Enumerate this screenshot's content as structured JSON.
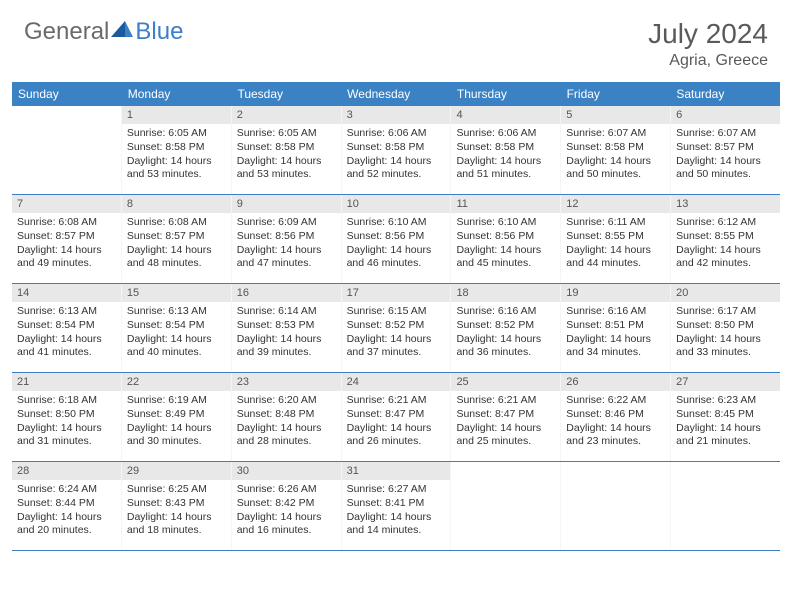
{
  "logo": {
    "general": "General",
    "blue": "Blue"
  },
  "title": "July 2024",
  "location": "Agria, Greece",
  "colors": {
    "header_bg": "#3b82c4",
    "header_text": "#ffffff",
    "daynum_bg": "#e8e8e8",
    "daynum_text": "#555555",
    "body_text": "#333333",
    "title_text": "#5a5a5a",
    "logo_gray": "#6a6a6a",
    "logo_blue": "#3b7fc4",
    "week_border": "#3b7fc4"
  },
  "day_names": [
    "Sunday",
    "Monday",
    "Tuesday",
    "Wednesday",
    "Thursday",
    "Friday",
    "Saturday"
  ],
  "weeks": [
    [
      null,
      {
        "n": "1",
        "sr": "Sunrise: 6:05 AM",
        "ss": "Sunset: 8:58 PM",
        "d1": "Daylight: 14 hours",
        "d2": "and 53 minutes."
      },
      {
        "n": "2",
        "sr": "Sunrise: 6:05 AM",
        "ss": "Sunset: 8:58 PM",
        "d1": "Daylight: 14 hours",
        "d2": "and 53 minutes."
      },
      {
        "n": "3",
        "sr": "Sunrise: 6:06 AM",
        "ss": "Sunset: 8:58 PM",
        "d1": "Daylight: 14 hours",
        "d2": "and 52 minutes."
      },
      {
        "n": "4",
        "sr": "Sunrise: 6:06 AM",
        "ss": "Sunset: 8:58 PM",
        "d1": "Daylight: 14 hours",
        "d2": "and 51 minutes."
      },
      {
        "n": "5",
        "sr": "Sunrise: 6:07 AM",
        "ss": "Sunset: 8:58 PM",
        "d1": "Daylight: 14 hours",
        "d2": "and 50 minutes."
      },
      {
        "n": "6",
        "sr": "Sunrise: 6:07 AM",
        "ss": "Sunset: 8:57 PM",
        "d1": "Daylight: 14 hours",
        "d2": "and 50 minutes."
      }
    ],
    [
      {
        "n": "7",
        "sr": "Sunrise: 6:08 AM",
        "ss": "Sunset: 8:57 PM",
        "d1": "Daylight: 14 hours",
        "d2": "and 49 minutes."
      },
      {
        "n": "8",
        "sr": "Sunrise: 6:08 AM",
        "ss": "Sunset: 8:57 PM",
        "d1": "Daylight: 14 hours",
        "d2": "and 48 minutes."
      },
      {
        "n": "9",
        "sr": "Sunrise: 6:09 AM",
        "ss": "Sunset: 8:56 PM",
        "d1": "Daylight: 14 hours",
        "d2": "and 47 minutes."
      },
      {
        "n": "10",
        "sr": "Sunrise: 6:10 AM",
        "ss": "Sunset: 8:56 PM",
        "d1": "Daylight: 14 hours",
        "d2": "and 46 minutes."
      },
      {
        "n": "11",
        "sr": "Sunrise: 6:10 AM",
        "ss": "Sunset: 8:56 PM",
        "d1": "Daylight: 14 hours",
        "d2": "and 45 minutes."
      },
      {
        "n": "12",
        "sr": "Sunrise: 6:11 AM",
        "ss": "Sunset: 8:55 PM",
        "d1": "Daylight: 14 hours",
        "d2": "and 44 minutes."
      },
      {
        "n": "13",
        "sr": "Sunrise: 6:12 AM",
        "ss": "Sunset: 8:55 PM",
        "d1": "Daylight: 14 hours",
        "d2": "and 42 minutes."
      }
    ],
    [
      {
        "n": "14",
        "sr": "Sunrise: 6:13 AM",
        "ss": "Sunset: 8:54 PM",
        "d1": "Daylight: 14 hours",
        "d2": "and 41 minutes."
      },
      {
        "n": "15",
        "sr": "Sunrise: 6:13 AM",
        "ss": "Sunset: 8:54 PM",
        "d1": "Daylight: 14 hours",
        "d2": "and 40 minutes."
      },
      {
        "n": "16",
        "sr": "Sunrise: 6:14 AM",
        "ss": "Sunset: 8:53 PM",
        "d1": "Daylight: 14 hours",
        "d2": "and 39 minutes."
      },
      {
        "n": "17",
        "sr": "Sunrise: 6:15 AM",
        "ss": "Sunset: 8:52 PM",
        "d1": "Daylight: 14 hours",
        "d2": "and 37 minutes."
      },
      {
        "n": "18",
        "sr": "Sunrise: 6:16 AM",
        "ss": "Sunset: 8:52 PM",
        "d1": "Daylight: 14 hours",
        "d2": "and 36 minutes."
      },
      {
        "n": "19",
        "sr": "Sunrise: 6:16 AM",
        "ss": "Sunset: 8:51 PM",
        "d1": "Daylight: 14 hours",
        "d2": "and 34 minutes."
      },
      {
        "n": "20",
        "sr": "Sunrise: 6:17 AM",
        "ss": "Sunset: 8:50 PM",
        "d1": "Daylight: 14 hours",
        "d2": "and 33 minutes."
      }
    ],
    [
      {
        "n": "21",
        "sr": "Sunrise: 6:18 AM",
        "ss": "Sunset: 8:50 PM",
        "d1": "Daylight: 14 hours",
        "d2": "and 31 minutes."
      },
      {
        "n": "22",
        "sr": "Sunrise: 6:19 AM",
        "ss": "Sunset: 8:49 PM",
        "d1": "Daylight: 14 hours",
        "d2": "and 30 minutes."
      },
      {
        "n": "23",
        "sr": "Sunrise: 6:20 AM",
        "ss": "Sunset: 8:48 PM",
        "d1": "Daylight: 14 hours",
        "d2": "and 28 minutes."
      },
      {
        "n": "24",
        "sr": "Sunrise: 6:21 AM",
        "ss": "Sunset: 8:47 PM",
        "d1": "Daylight: 14 hours",
        "d2": "and 26 minutes."
      },
      {
        "n": "25",
        "sr": "Sunrise: 6:21 AM",
        "ss": "Sunset: 8:47 PM",
        "d1": "Daylight: 14 hours",
        "d2": "and 25 minutes."
      },
      {
        "n": "26",
        "sr": "Sunrise: 6:22 AM",
        "ss": "Sunset: 8:46 PM",
        "d1": "Daylight: 14 hours",
        "d2": "and 23 minutes."
      },
      {
        "n": "27",
        "sr": "Sunrise: 6:23 AM",
        "ss": "Sunset: 8:45 PM",
        "d1": "Daylight: 14 hours",
        "d2": "and 21 minutes."
      }
    ],
    [
      {
        "n": "28",
        "sr": "Sunrise: 6:24 AM",
        "ss": "Sunset: 8:44 PM",
        "d1": "Daylight: 14 hours",
        "d2": "and 20 minutes."
      },
      {
        "n": "29",
        "sr": "Sunrise: 6:25 AM",
        "ss": "Sunset: 8:43 PM",
        "d1": "Daylight: 14 hours",
        "d2": "and 18 minutes."
      },
      {
        "n": "30",
        "sr": "Sunrise: 6:26 AM",
        "ss": "Sunset: 8:42 PM",
        "d1": "Daylight: 14 hours",
        "d2": "and 16 minutes."
      },
      {
        "n": "31",
        "sr": "Sunrise: 6:27 AM",
        "ss": "Sunset: 8:41 PM",
        "d1": "Daylight: 14 hours",
        "d2": "and 14 minutes."
      },
      null,
      null,
      null
    ]
  ]
}
